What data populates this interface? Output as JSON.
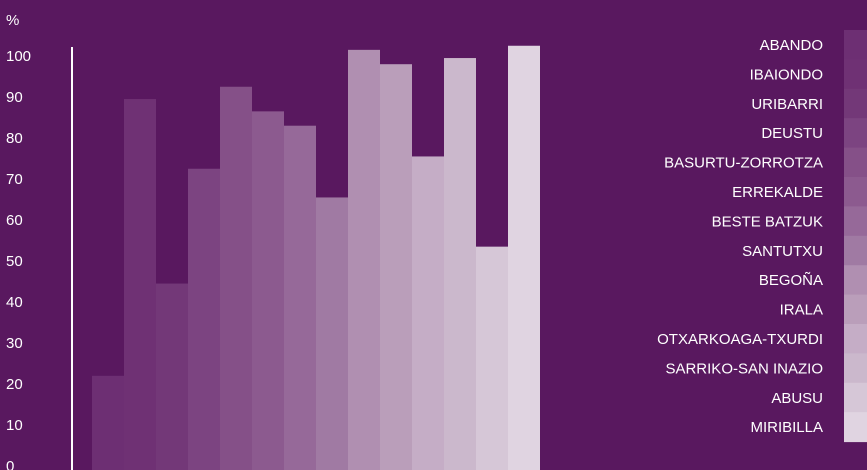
{
  "chart_data": {
    "type": "bar",
    "ylabel": "%",
    "ylim": [
      0,
      100
    ],
    "yticks": [
      0,
      10,
      20,
      30,
      40,
      50,
      60,
      70,
      80,
      90,
      100
    ],
    "grid": false,
    "legend_position": "right",
    "categories": [
      "ABANDO",
      "IBAIONDO",
      "URIBARRI",
      "DEUSTU",
      "BASURTU-ZORROTZA",
      "ERREKALDE",
      "BESTE BATZUK",
      "SANTUTXU",
      "BEGOÑA",
      "IRALA",
      "OTXARKOAGA-TXURDI",
      "SARRIKO-SAN INAZIO",
      "ABUSU",
      "MIRIBILLA"
    ],
    "values": [
      22,
      89.5,
      44.5,
      72.5,
      92.5,
      86.5,
      83,
      65.5,
      101.5,
      98,
      75.5,
      99.5,
      53.5,
      102.5
    ],
    "colors": [
      "#6d2f73",
      "#6f3174",
      "#733878",
      "#7c4481",
      "#855088",
      "#8c5a8f",
      "#966999",
      "#a07aa3",
      "#b08fb1",
      "#ba9eba",
      "#c5adc6",
      "#cbb8cc",
      "#d6c7d7",
      "#e0d4e1"
    ]
  }
}
